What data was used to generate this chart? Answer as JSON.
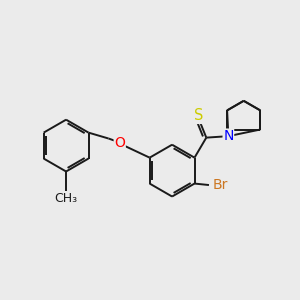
{
  "background_color": "#EBEBEB",
  "bond_color": "#1a1a1a",
  "bond_width": 1.4,
  "figsize": [
    3.0,
    3.0
  ],
  "dpi": 100,
  "xlim": [
    0,
    1
  ],
  "ylim": [
    0,
    1
  ],
  "colors": {
    "O": "#FF0000",
    "S": "#CCCC00",
    "N": "#0000FF",
    "Br": "#CC7722",
    "C": "#1a1a1a"
  }
}
